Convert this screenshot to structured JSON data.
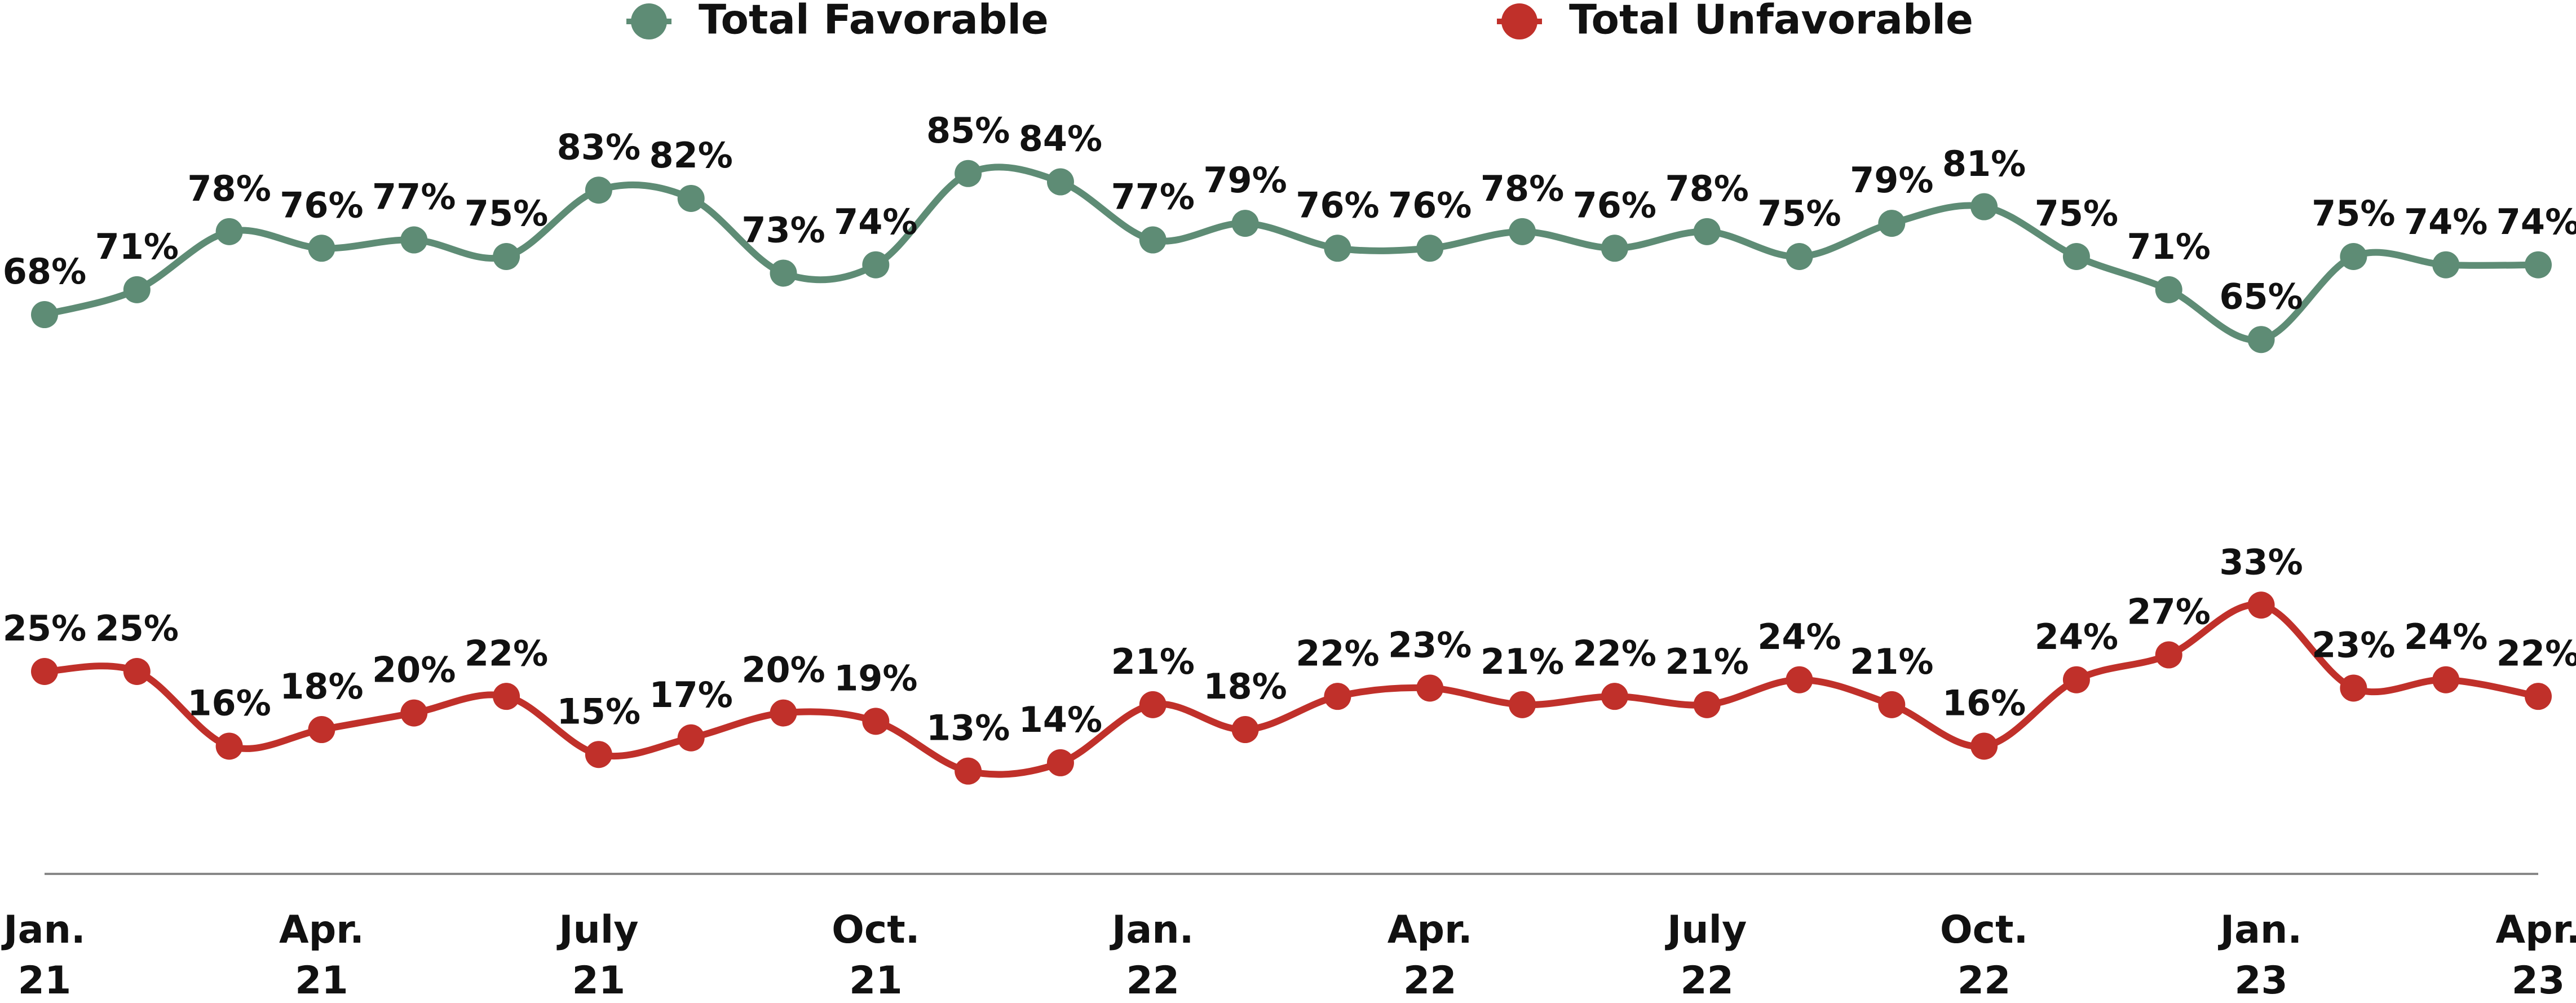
{
  "chart_data": {
    "type": "line",
    "categories": [
      "Jan.\n21",
      null,
      null,
      "Apr.\n21",
      null,
      null,
      "July\n21",
      null,
      null,
      "Oct.\n21",
      null,
      null,
      "Jan.\n22",
      null,
      null,
      "Apr.\n22",
      null,
      null,
      "July\n22",
      null,
      null,
      "Oct.\n22",
      null,
      null,
      "Jan.\n23",
      null,
      null,
      "Apr.\n23"
    ],
    "series": [
      {
        "name": "Total Favorable",
        "color": "#5e8c75",
        "values": [
          68,
          71,
          78,
          76,
          77,
          75,
          83,
          82,
          73,
          74,
          85,
          84,
          77,
          79,
          76,
          76,
          78,
          76,
          78,
          75,
          79,
          81,
          75,
          71,
          65,
          75,
          74,
          74
        ],
        "value_labels": [
          "68%",
          "71%",
          "78%",
          "76%",
          "77%",
          "75%",
          "83%",
          "82%",
          "73%",
          "74%",
          "85%",
          "84%",
          "77%",
          "79%",
          "76%",
          "76%",
          "78%",
          "76%",
          "78%",
          "75%",
          "79%",
          "81%",
          "75%",
          "71%",
          "65%",
          "75%",
          "74%",
          "74%"
        ]
      },
      {
        "name": "Total Unfavorable",
        "color": "#c0302a",
        "values": [
          25,
          25,
          16,
          18,
          20,
          22,
          15,
          17,
          20,
          19,
          13,
          14,
          21,
          18,
          22,
          23,
          21,
          22,
          21,
          24,
          21,
          16,
          24,
          27,
          33,
          23,
          24,
          22
        ],
        "value_labels": [
          "25%",
          "25%",
          "16%",
          "18%",
          "20%",
          "22%",
          "15%",
          "17%",
          "20%",
          "19%",
          "13%",
          "14%",
          "21%",
          "18%",
          "22%",
          "23%",
          "21%",
          "22%",
          "21%",
          "24%",
          "21%",
          "16%",
          "24%",
          "27%",
          "33%",
          "23%",
          "24%",
          "22%"
        ]
      }
    ],
    "ylim": [
      0,
      100
    ],
    "grid": false,
    "legend": "top"
  }
}
